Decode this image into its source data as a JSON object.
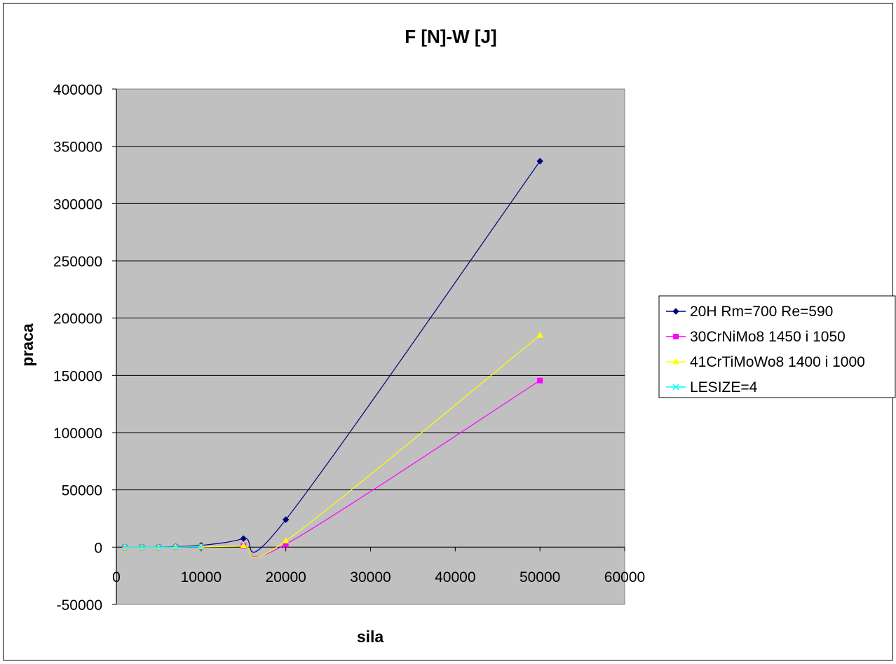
{
  "chart_data": {
    "type": "scatter",
    "title": "F [N]-W [J]",
    "xlabel": "sila",
    "ylabel": "praca",
    "xlim": [
      0,
      60000
    ],
    "ylim": [
      -50000,
      400000
    ],
    "x_ticks": [
      0,
      10000,
      20000,
      30000,
      40000,
      50000,
      60000
    ],
    "x_tick_labels": [
      "0",
      "10000",
      "20000",
      "30000",
      "40000",
      "50000",
      "60000"
    ],
    "y_ticks": [
      -50000,
      0,
      50000,
      100000,
      150000,
      200000,
      250000,
      300000,
      350000,
      400000
    ],
    "y_tick_labels": [
      "-50000",
      "0",
      "50000",
      "100000",
      "150000",
      "200000",
      "250000",
      "300000",
      "350000",
      "400000"
    ],
    "plot_background": "#c0c0c0",
    "grid": "horizontal",
    "legend_position": "right",
    "smooth_lines": true,
    "series": [
      {
        "name": "20H Rm=700 Re=590",
        "color": "#000080",
        "marker": "diamond",
        "x": [
          1000,
          3000,
          5000,
          7000,
          10000,
          15000,
          20000,
          50000
        ],
        "y": [
          0,
          0,
          200,
          500,
          1500,
          7500,
          24000,
          337000
        ]
      },
      {
        "name": "30CrNiMo8 1450 i 1050",
        "color": "#ff00ff",
        "marker": "square",
        "x": [
          1000,
          3000,
          5000,
          7000,
          10000,
          15000,
          20000,
          50000
        ],
        "y": [
          0,
          0,
          0,
          100,
          300,
          1000,
          2500,
          145500
        ]
      },
      {
        "name": "41CrTiMoWo8 1400 i 1000",
        "color": "#ffff00",
        "marker": "triangle",
        "x": [
          1000,
          3000,
          5000,
          7000,
          10000,
          15000,
          20000,
          50000
        ],
        "y": [
          0,
          0,
          0,
          100,
          400,
          1200,
          5500,
          185000
        ]
      },
      {
        "name": "LESIZE=4",
        "color": "#00ffff",
        "marker": "x",
        "x": [
          1000,
          3000,
          5000,
          7000,
          10000
        ],
        "y": [
          0,
          0,
          100,
          200,
          300
        ]
      }
    ]
  }
}
